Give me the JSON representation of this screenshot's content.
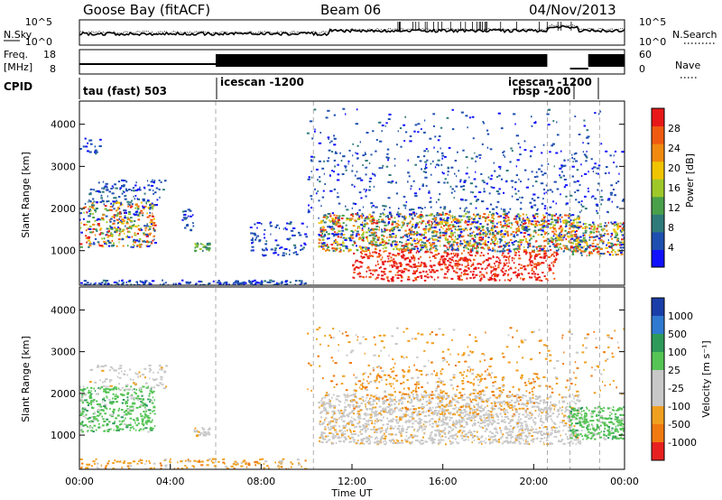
{
  "header": {
    "station": "Goose Bay (fitACF)",
    "beam": "Beam 06",
    "date": "04/Nov/2013"
  },
  "left_labels": {
    "nsky": "N.Sky",
    "freq_line1": "Freq.",
    "freq_line2": "[MHz]",
    "cpid": "CPID"
  },
  "right_labels": {
    "nsearch": "N.Search",
    "nave": "Nave"
  },
  "cpid_segments": [
    {
      "label": "tau (fast) 503",
      "start": 0
    },
    {
      "label": "icescan -1200",
      "start": 6
    },
    {
      "label": "icescan -1200",
      "start": 20.6
    },
    {
      "label": "rbsp -200",
      "start": 20.6
    }
  ],
  "colors": {
    "power_scale": [
      "#1010ff",
      "#1e4fb0",
      "#2f7a7a",
      "#4aa04a",
      "#9ec82a",
      "#f0c400",
      "#f08a10",
      "#f05a10",
      "#e81818"
    ],
    "velocity_scale": [
      "#1a3ea8",
      "#2f7ad0",
      "#2d9a5a",
      "#55c455",
      "#c8c8c8",
      "#c8c8c8",
      "#f0a020",
      "#f07a10",
      "#e82020"
    ]
  },
  "chart_data": [
    {
      "type": "line",
      "name": "noise-panel",
      "left_scale_ticks": [
        "10^5",
        "10^0"
      ],
      "right_scale_ticks": [
        "10^5",
        "10^0"
      ],
      "series": [
        {
          "name": "N.Sky"
        },
        {
          "name": "N.Search"
        }
      ]
    },
    {
      "type": "bar",
      "name": "freq-nave-panel",
      "left_ticks": [
        "18",
        "8"
      ],
      "right_ticks": [
        "60",
        "0"
      ]
    },
    {
      "type": "heatmap",
      "name": "power",
      "xlabel": "",
      "ylabel": "Slant Range [km]",
      "x_ticks": [
        "00:00",
        "04:00",
        "08:00",
        "12:00",
        "16:00",
        "20:00",
        "00:00"
      ],
      "xlim": [
        0,
        24
      ],
      "y_ticks": [
        1000,
        2000,
        3000,
        4000
      ],
      "ylim": [
        180,
        4550
      ],
      "colorbar_label": "Power [dB]",
      "colorbar_ticks": [
        4,
        8,
        12,
        16,
        20,
        24,
        28
      ]
    },
    {
      "type": "heatmap",
      "name": "velocity",
      "xlabel": "Time UT",
      "ylabel": "Slant Range [km]",
      "x_ticks": [
        "00:00",
        "04:00",
        "08:00",
        "12:00",
        "16:00",
        "20:00",
        "00:00"
      ],
      "xlim": [
        0,
        24
      ],
      "y_ticks": [
        1000,
        2000,
        3000,
        4000
      ],
      "ylim": [
        180,
        4550
      ],
      "colorbar_label": "Velocity [m s⁻¹]",
      "colorbar_ticks": [
        1000,
        500,
        100,
        25,
        -25,
        -100,
        -500,
        -1000
      ]
    }
  ]
}
